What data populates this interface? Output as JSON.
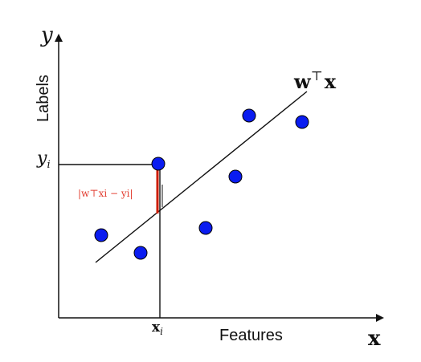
{
  "diagram": {
    "axis_y_symbol": "y",
    "axis_y_label": "Labels",
    "axis_x_symbol": "x",
    "axis_x_label": "Features",
    "y_i_label": "y",
    "y_i_sub": "i",
    "x_i_label": "x",
    "x_i_sub": "i",
    "line_label_w": "w",
    "line_label_sup": "⊤",
    "line_label_x": "x",
    "residual_label": "|w⊤xi − yi|",
    "colors": {
      "points": "#0a1cf0",
      "point_stroke": "#000000",
      "residual": "#cc1b00",
      "residual_label": "#e23b2e",
      "lines": "#111111"
    }
  }
}
